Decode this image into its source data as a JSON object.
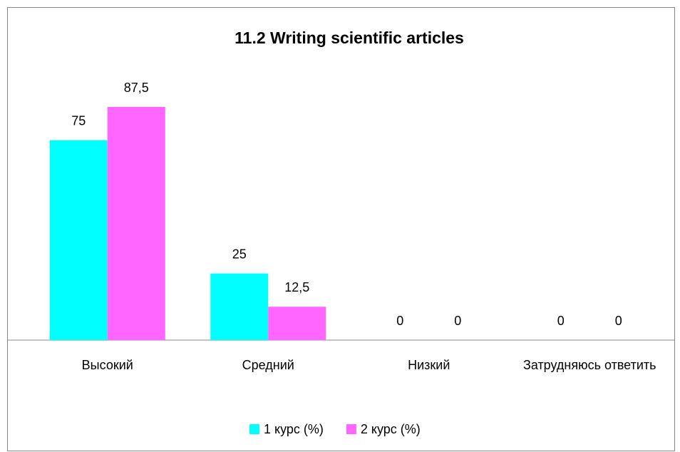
{
  "chart_data": {
    "type": "bar",
    "title": "11.2 Writing scientific articles",
    "categories": [
      "Высокий",
      "Средний",
      "Низкий",
      "Затрудняюсь ответить"
    ],
    "series": [
      {
        "name": "1 курс (%)",
        "color": "#00ffff",
        "values": [
          75,
          25,
          0,
          0
        ]
      },
      {
        "name": "2 курс (%)",
        "color": "#ff66ff",
        "values": [
          87.5,
          12.5,
          0,
          0
        ],
        "value_labels": [
          "87,5",
          "12,5",
          "0",
          "0"
        ]
      }
    ],
    "legend": "bottom"
  }
}
